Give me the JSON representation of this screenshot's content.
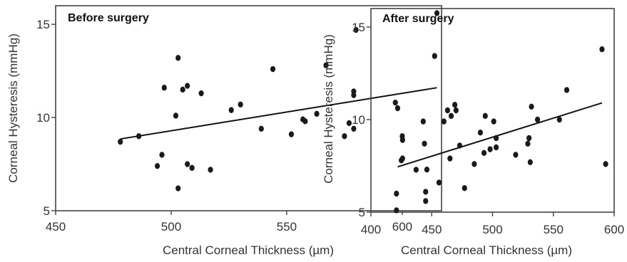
{
  "chart_data": [
    {
      "type": "scatter",
      "title": "Before surgery",
      "xlabel": "Central Corneal Thickness (µm)",
      "ylabel": "Corneal Hysteresis (mmHg)",
      "xlim": [
        450,
        617
      ],
      "ylim": [
        5,
        16
      ],
      "xticks": [
        450,
        500,
        550,
        600
      ],
      "yticks": [
        5,
        10,
        15
      ],
      "grid": false,
      "points": [
        {
          "x": 478,
          "y": 8.7
        },
        {
          "x": 486,
          "y": 9.0
        },
        {
          "x": 494,
          "y": 7.4
        },
        {
          "x": 496,
          "y": 8.0
        },
        {
          "x": 497,
          "y": 11.6
        },
        {
          "x": 502,
          "y": 10.1
        },
        {
          "x": 503,
          "y": 13.2
        },
        {
          "x": 503,
          "y": 6.2
        },
        {
          "x": 505,
          "y": 11.5
        },
        {
          "x": 507,
          "y": 11.7
        },
        {
          "x": 507,
          "y": 7.5
        },
        {
          "x": 509,
          "y": 7.3
        },
        {
          "x": 513,
          "y": 11.3
        },
        {
          "x": 517,
          "y": 7.2
        },
        {
          "x": 526,
          "y": 10.4
        },
        {
          "x": 530,
          "y": 10.7
        },
        {
          "x": 539,
          "y": 9.4
        },
        {
          "x": 544,
          "y": 12.6
        },
        {
          "x": 552,
          "y": 9.1
        },
        {
          "x": 557,
          "y": 9.9
        },
        {
          "x": 558,
          "y": 9.8
        },
        {
          "x": 563,
          "y": 10.2
        },
        {
          "x": 567,
          "y": 12.8
        },
        {
          "x": 575,
          "y": 9.0
        },
        {
          "x": 577,
          "y": 9.7
        },
        {
          "x": 579,
          "y": 9.4
        },
        {
          "x": 579,
          "y": 11.4
        },
        {
          "x": 579,
          "y": 11.2
        },
        {
          "x": 580,
          "y": 14.7
        },
        {
          "x": 597,
          "y": 10.8
        },
        {
          "x": 598,
          "y": 10.5
        },
        {
          "x": 600,
          "y": 9.0
        },
        {
          "x": 606,
          "y": 7.2
        },
        {
          "x": 614,
          "y": 13.3
        },
        {
          "x": 615,
          "y": 15.6
        }
      ],
      "trendline": {
        "x": [
          478,
          615
        ],
        "y": [
          8.85,
          11.6
        ]
      }
    },
    {
      "type": "scatter",
      "title": "After surgery",
      "xlabel": "Central Corneal Thickness (µm)",
      "ylabel": "Corneal Hysteresis (mmHg)",
      "xlim": [
        400,
        600
      ],
      "ylim": [
        5,
        16
      ],
      "xticks": [
        400,
        450,
        500,
        550,
        600
      ],
      "yticks": [
        5,
        10,
        15
      ],
      "grid": false,
      "points": [
        {
          "x": 421,
          "y": 5.1
        },
        {
          "x": 421,
          "y": 6.0
        },
        {
          "x": 425,
          "y": 7.8
        },
        {
          "x": 426,
          "y": 7.9
        },
        {
          "x": 426,
          "y": 8.9
        },
        {
          "x": 443,
          "y": 9.9
        },
        {
          "x": 444,
          "y": 8.7
        },
        {
          "x": 445,
          "y": 5.6
        },
        {
          "x": 445,
          "y": 6.1
        },
        {
          "x": 446,
          "y": 7.3
        },
        {
          "x": 456,
          "y": 6.6
        },
        {
          "x": 460,
          "y": 9.9
        },
        {
          "x": 463,
          "y": 10.5
        },
        {
          "x": 465,
          "y": 7.9
        },
        {
          "x": 466,
          "y": 10.2
        },
        {
          "x": 469,
          "y": 10.8
        },
        {
          "x": 470,
          "y": 10.5
        },
        {
          "x": 473,
          "y": 8.6
        },
        {
          "x": 477,
          "y": 6.3
        },
        {
          "x": 485,
          "y": 7.6
        },
        {
          "x": 490,
          "y": 9.3
        },
        {
          "x": 493,
          "y": 8.2
        },
        {
          "x": 494,
          "y": 10.2
        },
        {
          "x": 498,
          "y": 8.4
        },
        {
          "x": 501,
          "y": 9.9
        },
        {
          "x": 503,
          "y": 8.5
        },
        {
          "x": 503,
          "y": 9.0
        },
        {
          "x": 519,
          "y": 8.1
        },
        {
          "x": 529,
          "y": 8.7
        },
        {
          "x": 530,
          "y": 9.0
        },
        {
          "x": 531,
          "y": 7.7
        },
        {
          "x": 532,
          "y": 10.7
        },
        {
          "x": 537,
          "y": 10.0
        },
        {
          "x": 555,
          "y": 10.0
        },
        {
          "x": 561,
          "y": 11.6
        },
        {
          "x": 590,
          "y": 13.8
        },
        {
          "x": 593,
          "y": 7.6
        }
      ],
      "trendline": {
        "x": [
          422,
          590
        ],
        "y": [
          7.45,
          10.9
        ]
      }
    }
  ]
}
